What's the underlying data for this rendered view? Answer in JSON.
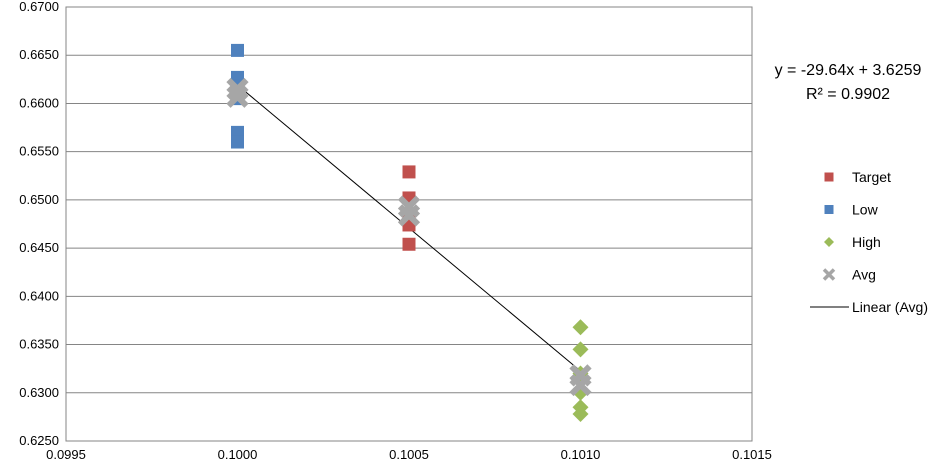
{
  "chart_data": {
    "type": "scatter",
    "title": "",
    "xlabel": "",
    "ylabel": "",
    "xlim": [
      0.0995,
      0.1015
    ],
    "ylim": [
      0.625,
      0.67
    ],
    "x_ticks": [
      "0.0995",
      "0.1000",
      "0.1005",
      "0.1010",
      "0.1015"
    ],
    "y_ticks": [
      "0.6250",
      "0.6300",
      "0.6350",
      "0.6400",
      "0.6450",
      "0.6500",
      "0.6550",
      "0.6600",
      "0.6650",
      "0.6700"
    ],
    "grid": "horizontal",
    "legend_position": "right",
    "series": [
      {
        "name": "Target",
        "marker": "square",
        "color": "#c0504d",
        "x": [
          0.1005,
          0.1005,
          0.1005,
          0.1005,
          0.1005
        ],
        "y": [
          0.6529,
          0.6502,
          0.6485,
          0.6474,
          0.6454
        ]
      },
      {
        "name": "Low",
        "marker": "square",
        "color": "#4f81bd",
        "x": [
          0.1,
          0.1,
          0.1,
          0.1,
          0.1,
          0.1
        ],
        "y": [
          0.6655,
          0.6627,
          0.6605,
          0.657,
          0.656,
          0.6618
        ]
      },
      {
        "name": "High",
        "marker": "diamond",
        "color": "#9bbb59",
        "x": [
          0.101,
          0.101,
          0.101,
          0.101,
          0.101,
          0.101
        ],
        "y": [
          0.6368,
          0.6345,
          0.632,
          0.63,
          0.6285,
          0.6278
        ]
      },
      {
        "name": "Avg",
        "marker": "x",
        "color": "#a6a6a6",
        "x": [
          0.1,
          0.1,
          0.1005,
          0.1005,
          0.101,
          0.101
        ],
        "y": [
          0.6615,
          0.6607,
          0.6493,
          0.6484,
          0.6318,
          0.6308
        ]
      }
    ],
    "trendline": {
      "name": "Linear (Avg)",
      "color": "#000000",
      "slope": -29.64,
      "intercept": 3.6259,
      "x_range": [
        0.1,
        0.101
      ],
      "equation": "y = -29.64x + 3.6259",
      "r_squared": "R² = 0.9902"
    }
  }
}
